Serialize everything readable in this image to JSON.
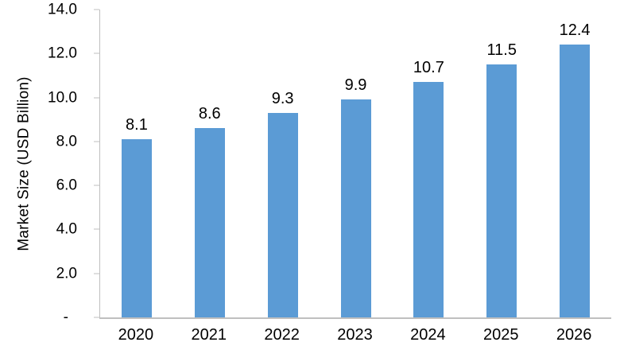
{
  "chart_data": {
    "type": "bar",
    "title": "",
    "xlabel": "",
    "ylabel": "Market Size (USD Billion)",
    "categories": [
      "2020",
      "2021",
      "2022",
      "2023",
      "2024",
      "2025",
      "2026"
    ],
    "values": [
      8.1,
      8.6,
      9.3,
      9.9,
      10.7,
      11.5,
      12.4
    ],
    "value_labels": [
      "8.1",
      "8.6",
      "9.3",
      "9.9",
      "10.7",
      "11.5",
      "12.4"
    ],
    "ylim": [
      0,
      14
    ],
    "y_ticks": [
      {
        "label": "14.0",
        "value": 14
      },
      {
        "label": "12.0",
        "value": 12
      },
      {
        "label": "10.0",
        "value": 10
      },
      {
        "label": "8.0",
        "value": 8
      },
      {
        "label": "6.0",
        "value": 6
      },
      {
        "label": "4.0",
        "value": 4
      },
      {
        "label": "2.0",
        "value": 2
      },
      {
        "label": "-",
        "value": 0
      }
    ],
    "grid": false,
    "legend": "none",
    "colors": {
      "bar": "#5B9BD5",
      "axis": "#BFBFBF",
      "text": "#000000",
      "background": "#FFFFFF"
    }
  }
}
